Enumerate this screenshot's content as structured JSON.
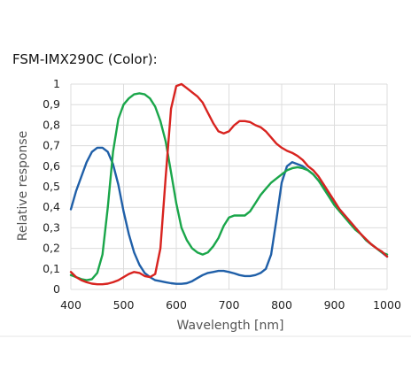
{
  "page": {
    "title": "FSM-IMX290C (Color):"
  },
  "chart_data": {
    "type": "line",
    "title": "FSM-IMX290C (Color):",
    "xlabel": "Wavelength [nm]",
    "ylabel": "Relative response",
    "xlim": [
      400,
      1000
    ],
    "ylim": [
      0,
      1
    ],
    "x_ticks": [
      400,
      500,
      600,
      700,
      800,
      900,
      1000
    ],
    "x_tick_labels": [
      "400",
      "500",
      "600",
      "700",
      "800",
      "900",
      "1000"
    ],
    "y_ticks": [
      0,
      0.1,
      0.2,
      0.3,
      0.4,
      0.5,
      0.6,
      0.7,
      0.8,
      0.9,
      1
    ],
    "y_tick_labels": [
      "0",
      "0,1",
      "0,2",
      "0,3",
      "0,4",
      "0,5",
      "0,6",
      "0,7",
      "0,8",
      "0,9",
      "1"
    ],
    "grid": true,
    "series": [
      {
        "color": "#1f5fa8",
        "points": [
          [
            400,
            0.39
          ],
          [
            410,
            0.48
          ],
          [
            420,
            0.55
          ],
          [
            430,
            0.62
          ],
          [
            440,
            0.67
          ],
          [
            450,
            0.69
          ],
          [
            460,
            0.69
          ],
          [
            470,
            0.67
          ],
          [
            480,
            0.61
          ],
          [
            490,
            0.51
          ],
          [
            500,
            0.38
          ],
          [
            510,
            0.27
          ],
          [
            520,
            0.18
          ],
          [
            530,
            0.12
          ],
          [
            540,
            0.08
          ],
          [
            550,
            0.06
          ],
          [
            560,
            0.045
          ],
          [
            570,
            0.04
          ],
          [
            580,
            0.035
          ],
          [
            590,
            0.03
          ],
          [
            600,
            0.027
          ],
          [
            610,
            0.027
          ],
          [
            620,
            0.03
          ],
          [
            630,
            0.04
          ],
          [
            640,
            0.055
          ],
          [
            650,
            0.07
          ],
          [
            660,
            0.08
          ],
          [
            670,
            0.085
          ],
          [
            680,
            0.09
          ],
          [
            690,
            0.09
          ],
          [
            700,
            0.085
          ],
          [
            710,
            0.078
          ],
          [
            720,
            0.07
          ],
          [
            730,
            0.065
          ],
          [
            740,
            0.065
          ],
          [
            750,
            0.07
          ],
          [
            760,
            0.08
          ],
          [
            770,
            0.1
          ],
          [
            780,
            0.17
          ],
          [
            790,
            0.34
          ],
          [
            800,
            0.52
          ],
          [
            810,
            0.6
          ],
          [
            820,
            0.62
          ],
          [
            830,
            0.61
          ],
          [
            840,
            0.6
          ],
          [
            850,
            0.58
          ],
          [
            860,
            0.56
          ],
          [
            870,
            0.53
          ],
          [
            880,
            0.5
          ],
          [
            890,
            0.46
          ],
          [
            900,
            0.42
          ],
          [
            910,
            0.39
          ],
          [
            920,
            0.36
          ],
          [
            930,
            0.33
          ],
          [
            940,
            0.3
          ],
          [
            950,
            0.27
          ],
          [
            960,
            0.24
          ],
          [
            970,
            0.22
          ],
          [
            980,
            0.2
          ],
          [
            990,
            0.18
          ],
          [
            1000,
            0.16
          ]
        ]
      },
      {
        "color": "#1aa64a",
        "points": [
          [
            400,
            0.07
          ],
          [
            410,
            0.06
          ],
          [
            420,
            0.05
          ],
          [
            430,
            0.045
          ],
          [
            440,
            0.05
          ],
          [
            450,
            0.08
          ],
          [
            460,
            0.17
          ],
          [
            470,
            0.4
          ],
          [
            480,
            0.67
          ],
          [
            490,
            0.83
          ],
          [
            500,
            0.9
          ],
          [
            510,
            0.93
          ],
          [
            520,
            0.95
          ],
          [
            530,
            0.955
          ],
          [
            540,
            0.95
          ],
          [
            550,
            0.93
          ],
          [
            560,
            0.89
          ],
          [
            570,
            0.82
          ],
          [
            580,
            0.72
          ],
          [
            590,
            0.57
          ],
          [
            600,
            0.42
          ],
          [
            610,
            0.3
          ],
          [
            620,
            0.24
          ],
          [
            630,
            0.2
          ],
          [
            640,
            0.18
          ],
          [
            650,
            0.17
          ],
          [
            660,
            0.18
          ],
          [
            670,
            0.21
          ],
          [
            680,
            0.25
          ],
          [
            690,
            0.31
          ],
          [
            700,
            0.35
          ],
          [
            710,
            0.36
          ],
          [
            720,
            0.36
          ],
          [
            730,
            0.36
          ],
          [
            740,
            0.38
          ],
          [
            750,
            0.42
          ],
          [
            760,
            0.46
          ],
          [
            770,
            0.49
          ],
          [
            780,
            0.52
          ],
          [
            790,
            0.54
          ],
          [
            800,
            0.56
          ],
          [
            810,
            0.58
          ],
          [
            820,
            0.59
          ],
          [
            830,
            0.595
          ],
          [
            840,
            0.59
          ],
          [
            850,
            0.58
          ],
          [
            860,
            0.56
          ],
          [
            870,
            0.53
          ],
          [
            880,
            0.49
          ],
          [
            890,
            0.45
          ],
          [
            900,
            0.41
          ],
          [
            910,
            0.38
          ],
          [
            920,
            0.35
          ],
          [
            930,
            0.32
          ],
          [
            940,
            0.29
          ],
          [
            950,
            0.27
          ],
          [
            960,
            0.24
          ],
          [
            970,
            0.22
          ],
          [
            980,
            0.2
          ],
          [
            990,
            0.18
          ],
          [
            1000,
            0.17
          ]
        ]
      },
      {
        "color": "#d8231f",
        "points": [
          [
            400,
            0.085
          ],
          [
            410,
            0.06
          ],
          [
            420,
            0.045
          ],
          [
            430,
            0.035
          ],
          [
            440,
            0.028
          ],
          [
            450,
            0.025
          ],
          [
            460,
            0.025
          ],
          [
            470,
            0.028
          ],
          [
            480,
            0.035
          ],
          [
            490,
            0.045
          ],
          [
            500,
            0.06
          ],
          [
            510,
            0.075
          ],
          [
            520,
            0.085
          ],
          [
            530,
            0.08
          ],
          [
            540,
            0.065
          ],
          [
            550,
            0.06
          ],
          [
            560,
            0.075
          ],
          [
            570,
            0.2
          ],
          [
            580,
            0.55
          ],
          [
            590,
            0.88
          ],
          [
            600,
            0.99
          ],
          [
            610,
            1.0
          ],
          [
            620,
            0.98
          ],
          [
            630,
            0.96
          ],
          [
            640,
            0.94
          ],
          [
            650,
            0.91
          ],
          [
            660,
            0.86
          ],
          [
            670,
            0.81
          ],
          [
            680,
            0.77
          ],
          [
            690,
            0.76
          ],
          [
            700,
            0.77
          ],
          [
            710,
            0.8
          ],
          [
            720,
            0.82
          ],
          [
            730,
            0.82
          ],
          [
            740,
            0.815
          ],
          [
            750,
            0.8
          ],
          [
            760,
            0.79
          ],
          [
            770,
            0.77
          ],
          [
            780,
            0.74
          ],
          [
            790,
            0.71
          ],
          [
            800,
            0.69
          ],
          [
            810,
            0.675
          ],
          [
            820,
            0.665
          ],
          [
            830,
            0.65
          ],
          [
            840,
            0.63
          ],
          [
            850,
            0.6
          ],
          [
            860,
            0.58
          ],
          [
            870,
            0.55
          ],
          [
            880,
            0.51
          ],
          [
            890,
            0.47
          ],
          [
            900,
            0.43
          ],
          [
            910,
            0.39
          ],
          [
            920,
            0.36
          ],
          [
            930,
            0.33
          ],
          [
            940,
            0.3
          ],
          [
            950,
            0.27
          ],
          [
            960,
            0.245
          ],
          [
            970,
            0.22
          ],
          [
            980,
            0.2
          ],
          [
            990,
            0.185
          ],
          [
            1000,
            0.16
          ]
        ]
      }
    ]
  }
}
